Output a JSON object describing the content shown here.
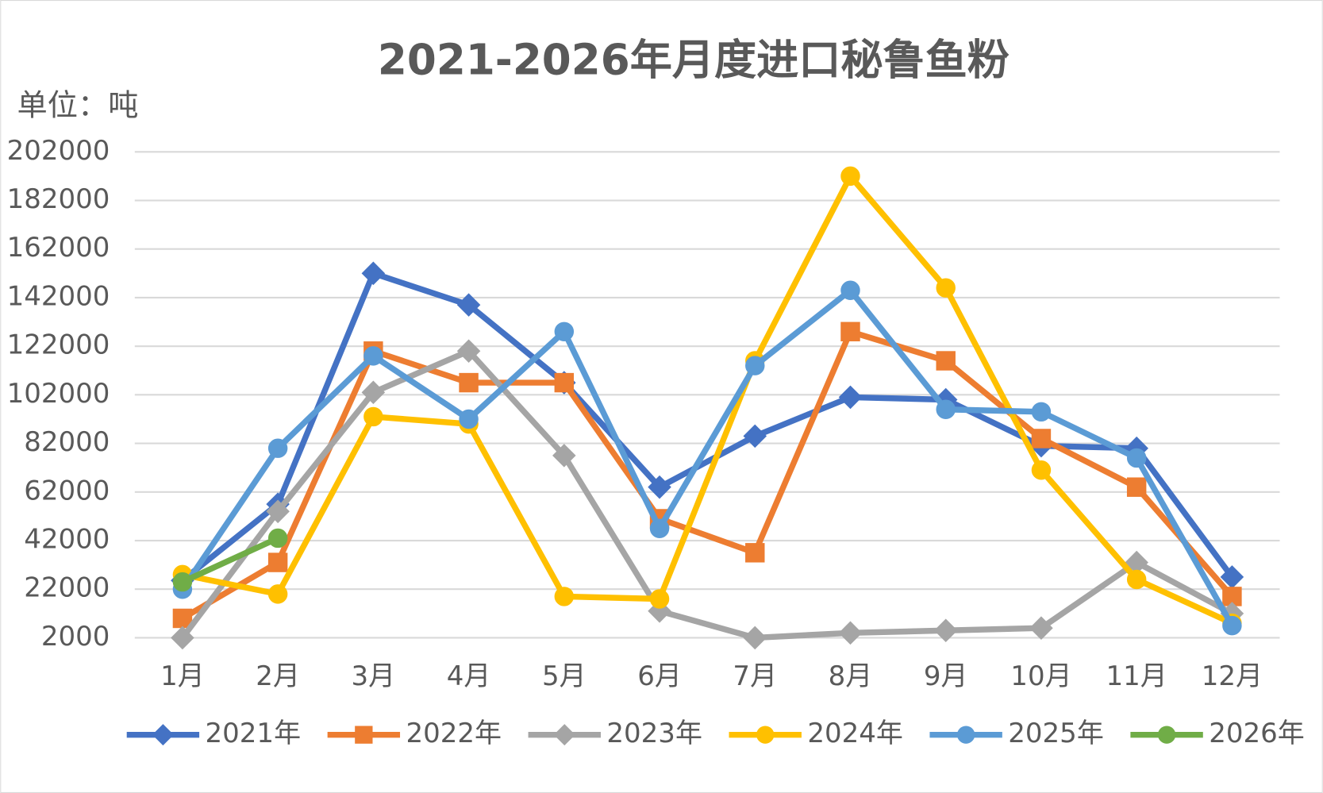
{
  "chart_data": {
    "type": "line",
    "title": "2021-2026年月度进口秘鲁鱼粉",
    "y_axis_label": "单位：吨",
    "categories": [
      "1月",
      "2月",
      "3月",
      "4月",
      "5月",
      "6月",
      "7月",
      "8月",
      "9月",
      "10月",
      "11月",
      "12月"
    ],
    "ylim": [
      2000,
      202000
    ],
    "yticks": [
      2000,
      22000,
      42000,
      62000,
      82000,
      102000,
      122000,
      142000,
      162000,
      182000,
      202000
    ],
    "grid": true,
    "legend": "bottom",
    "series": [
      {
        "name": "2021年",
        "color": "#4472c4",
        "marker": "diamond",
        "values": [
          25600,
          57000,
          152000,
          139000,
          107000,
          64000,
          85000,
          101000,
          100000,
          81000,
          80000,
          27000
        ]
      },
      {
        "name": "2022年",
        "color": "#ed7d31",
        "marker": "square",
        "values": [
          10000,
          33000,
          120000,
          107000,
          107000,
          51000,
          37000,
          128000,
          116000,
          84000,
          64000,
          19000
        ]
      },
      {
        "name": "2023年",
        "color": "#a5a5a5",
        "marker": "diamond",
        "values": [
          2000,
          54000,
          103000,
          120000,
          77000,
          13000,
          2000,
          4000,
          5000,
          6000,
          33000,
          12000
        ]
      },
      {
        "name": "2024年",
        "color": "#ffc000",
        "marker": "circle",
        "values": [
          28000,
          20000,
          93000,
          90000,
          19000,
          18000,
          116000,
          192000,
          146000,
          71000,
          26000,
          8000
        ]
      },
      {
        "name": "2025年",
        "color": "#5b9bd5",
        "marker": "circle",
        "values": [
          22000,
          80000,
          118000,
          92000,
          128000,
          47000,
          114000,
          145000,
          96000,
          95000,
          76000,
          7000
        ]
      },
      {
        "name": "2026年",
        "color": "#70ad47",
        "marker": "circle",
        "values": [
          25000,
          43000,
          null,
          null,
          null,
          null,
          null,
          null,
          null,
          null,
          null,
          null
        ]
      }
    ]
  }
}
